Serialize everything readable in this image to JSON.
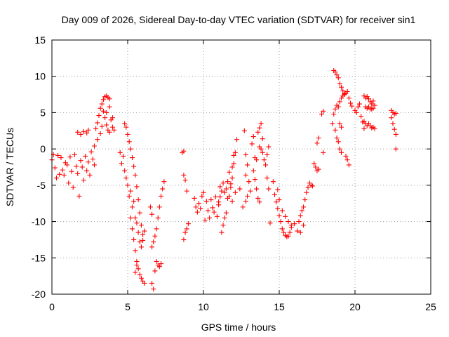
{
  "chart_data": {
    "type": "scatter",
    "title": "Day 009 of 2026, Sidereal Day-to-day VTEC variation (SDTVAR) for receiver sin1",
    "xlabel": "GPS time / hours",
    "ylabel": "SDTVAR / TECUs",
    "xlim": [
      0,
      25
    ],
    "ylim": [
      -20,
      15
    ],
    "xticks": [
      0,
      5,
      10,
      15,
      20,
      25
    ],
    "yticks": [
      -20,
      -15,
      -10,
      -5,
      0,
      5,
      10,
      15
    ],
    "grid": true,
    "marker": "+",
    "series": [
      {
        "name": "SDTVAR",
        "color": "#ff0000",
        "points": [
          [
            0.0,
            -1.5
          ],
          [
            0.1,
            -0.8
          ],
          [
            0.2,
            -2.6
          ],
          [
            0.3,
            -4.0
          ],
          [
            0.4,
            -0.9
          ],
          [
            0.5,
            -3.5
          ],
          [
            0.6,
            -1.2
          ],
          [
            0.7,
            -2.9
          ],
          [
            0.8,
            -3.6
          ],
          [
            0.9,
            -1.9
          ],
          [
            1.0,
            -2.2
          ],
          [
            1.1,
            -4.7
          ],
          [
            1.2,
            -1.1
          ],
          [
            1.3,
            -3.1
          ],
          [
            1.4,
            -5.3
          ],
          [
            1.5,
            -0.8
          ],
          [
            1.6,
            -2.4
          ],
          [
            1.7,
            -3.4
          ],
          [
            1.8,
            -6.5
          ],
          [
            1.9,
            -1.6
          ],
          [
            2.0,
            -2.5
          ],
          [
            2.1,
            -4.3
          ],
          [
            2.2,
            -1.0
          ],
          [
            2.3,
            -3.0
          ],
          [
            2.4,
            -1.8
          ],
          [
            2.5,
            -3.6
          ],
          [
            2.6,
            -0.4
          ],
          [
            2.7,
            -1.4
          ],
          [
            2.8,
            -2.2
          ],
          [
            1.7,
            2.3
          ],
          [
            1.9,
            2.0
          ],
          [
            2.1,
            2.4
          ],
          [
            2.3,
            2.2
          ],
          [
            2.4,
            2.6
          ],
          [
            2.8,
            0.4
          ],
          [
            2.9,
            2.8
          ],
          [
            3.0,
            3.6
          ],
          [
            3.0,
            1.3
          ],
          [
            3.1,
            4.6
          ],
          [
            3.2,
            5.6
          ],
          [
            3.3,
            6.2
          ],
          [
            3.4,
            6.8
          ],
          [
            3.5,
            7.2
          ],
          [
            3.6,
            7.3
          ],
          [
            3.7,
            7.1
          ],
          [
            3.8,
            6.9
          ],
          [
            3.2,
            2.1
          ],
          [
            3.3,
            3.1
          ],
          [
            3.4,
            5.2
          ],
          [
            3.5,
            4.3
          ],
          [
            3.6,
            3.3
          ],
          [
            3.7,
            2.6
          ],
          [
            3.8,
            2.3
          ],
          [
            3.9,
            4.0
          ],
          [
            4.0,
            3.0
          ],
          [
            4.1,
            2.6
          ],
          [
            3.6,
            5.0
          ],
          [
            3.8,
            5.8
          ],
          [
            4.0,
            4.3
          ],
          [
            4.5,
            -0.5
          ],
          [
            4.6,
            -2.0
          ],
          [
            4.7,
            -1.0
          ],
          [
            4.8,
            -3.0
          ],
          [
            4.9,
            -4.0
          ],
          [
            5.0,
            -5.0
          ],
          [
            5.1,
            -6.5
          ],
          [
            5.2,
            -5.8
          ],
          [
            5.3,
            -8.0
          ],
          [
            5.4,
            -7.2
          ],
          [
            5.5,
            -9.5
          ],
          [
            5.6,
            -10.2
          ],
          [
            5.7,
            -11.5
          ],
          [
            5.8,
            -12.8
          ],
          [
            5.9,
            -13.5
          ],
          [
            6.0,
            -12.6
          ],
          [
            6.1,
            -11.3
          ],
          [
            4.8,
            3.5
          ],
          [
            4.9,
            3.0
          ],
          [
            5.0,
            2.0
          ],
          [
            5.1,
            1.0
          ],
          [
            5.2,
            0.0
          ],
          [
            5.3,
            -1.2
          ],
          [
            5.4,
            -2.4
          ],
          [
            5.5,
            -3.6
          ],
          [
            5.6,
            -5.2
          ],
          [
            5.7,
            -7.0
          ],
          [
            5.8,
            -8.8
          ],
          [
            5.9,
            -10.5
          ],
          [
            6.0,
            -11.8
          ],
          [
            5.2,
            -9.5
          ],
          [
            5.3,
            -11.0
          ],
          [
            5.4,
            -12.5
          ],
          [
            5.5,
            -14.0
          ],
          [
            5.6,
            -15.5
          ],
          [
            5.7,
            -16.5
          ],
          [
            5.8,
            -17.3
          ],
          [
            5.9,
            -17.8
          ],
          [
            6.0,
            -18.2
          ],
          [
            6.1,
            -18.5
          ],
          [
            5.5,
            -17.0
          ],
          [
            5.6,
            -16.0
          ],
          [
            6.6,
            -18.5
          ],
          [
            6.7,
            -19.3
          ],
          [
            6.8,
            -16.8
          ],
          [
            6.9,
            -15.5
          ],
          [
            7.0,
            -16.0
          ],
          [
            7.1,
            -16.2
          ],
          [
            7.2,
            -15.8
          ],
          [
            6.8,
            -12.0
          ],
          [
            6.9,
            -11.0
          ],
          [
            7.0,
            -9.5
          ],
          [
            7.1,
            -8.0
          ],
          [
            7.2,
            -6.5
          ],
          [
            7.3,
            -5.5
          ],
          [
            7.4,
            -4.5
          ],
          [
            6.6,
            -13.5
          ],
          [
            6.7,
            -12.8
          ],
          [
            6.5,
            -8.0
          ],
          [
            6.6,
            -9.0
          ],
          [
            8.6,
            -0.5
          ],
          [
            8.7,
            -0.3
          ],
          [
            8.7,
            -3.6
          ],
          [
            8.8,
            -4.3
          ],
          [
            8.9,
            -5.8
          ],
          [
            8.8,
            -11.5
          ],
          [
            8.9,
            -11.0
          ],
          [
            8.7,
            -12.5
          ],
          [
            9.0,
            -10.3
          ],
          [
            9.4,
            -6.8
          ],
          [
            9.5,
            -8.0
          ],
          [
            9.6,
            -8.7
          ],
          [
            9.7,
            -7.5
          ],
          [
            9.8,
            -8.2
          ],
          [
            9.9,
            -6.5
          ],
          [
            10.0,
            -6.0
          ],
          [
            10.1,
            -9.8
          ],
          [
            10.2,
            -7.2
          ],
          [
            10.3,
            -8.5
          ],
          [
            10.4,
            -9.5
          ],
          [
            10.5,
            -7.0
          ],
          [
            10.6,
            -8.1
          ],
          [
            10.7,
            -8.7
          ],
          [
            10.8,
            -6.6
          ],
          [
            10.9,
            -9.3
          ],
          [
            11.0,
            -7.3
          ],
          [
            11.1,
            -5.2
          ],
          [
            11.2,
            -11.5
          ],
          [
            11.3,
            -10.5
          ],
          [
            11.4,
            -9.5
          ],
          [
            11.5,
            -8.8
          ],
          [
            11.6,
            -6.8
          ],
          [
            11.7,
            -6.5
          ],
          [
            11.8,
            -5.3
          ],
          [
            11.9,
            -4.0
          ],
          [
            12.0,
            -2.0
          ],
          [
            12.1,
            -0.5
          ],
          [
            12.2,
            1.3
          ],
          [
            11.4,
            -6.0
          ],
          [
            11.5,
            -5.5
          ],
          [
            11.6,
            -4.5
          ],
          [
            11.7,
            -3.2
          ],
          [
            11.8,
            -4.8
          ],
          [
            11.9,
            -2.5
          ],
          [
            12.0,
            -0.9
          ],
          [
            11.3,
            -4.7
          ],
          [
            11.2,
            -5.8
          ],
          [
            11.1,
            -6.6
          ],
          [
            11.0,
            -7.7
          ],
          [
            12.1,
            -6.0
          ],
          [
            11.9,
            -7.2
          ],
          [
            12.4,
            -5.5
          ],
          [
            12.6,
            -8.0
          ],
          [
            12.8,
            -7.2
          ],
          [
            12.9,
            -6.5
          ],
          [
            13.3,
            -3.0
          ],
          [
            13.4,
            -4.2
          ],
          [
            13.5,
            -5.5
          ],
          [
            13.6,
            -6.8
          ],
          [
            13.7,
            -7.3
          ],
          [
            13.4,
            -1.2
          ],
          [
            13.5,
            -1.5
          ],
          [
            13.6,
            2.3
          ],
          [
            13.7,
            2.9
          ],
          [
            13.8,
            3.5
          ],
          [
            13.9,
            1.4
          ],
          [
            13.7,
            0.3
          ],
          [
            13.8,
            0.0
          ],
          [
            13.9,
            -0.5
          ],
          [
            14.0,
            -1.5
          ],
          [
            14.1,
            -2.2
          ],
          [
            14.2,
            -0.8
          ],
          [
            14.3,
            0.3
          ],
          [
            12.7,
            2.5
          ],
          [
            12.8,
            -0.8
          ],
          [
            12.9,
            -2.2
          ],
          [
            13.0,
            -4.5
          ],
          [
            13.1,
            -5.8
          ],
          [
            13.2,
            0.7
          ],
          [
            13.3,
            1.7
          ],
          [
            12.8,
            -3.6
          ],
          [
            14.2,
            -4.0
          ],
          [
            14.3,
            -5.5
          ],
          [
            14.4,
            -10.2
          ],
          [
            14.6,
            -4.5
          ],
          [
            14.7,
            -6.3
          ],
          [
            14.8,
            -7.3
          ],
          [
            14.9,
            -8.2
          ],
          [
            15.0,
            -9.2
          ],
          [
            15.1,
            -10.0
          ],
          [
            15.2,
            -11.0
          ],
          [
            15.3,
            -11.5
          ],
          [
            15.4,
            -11.9
          ],
          [
            15.5,
            -12.1
          ],
          [
            15.6,
            -12.0
          ],
          [
            15.7,
            -11.5
          ],
          [
            15.8,
            -10.5
          ],
          [
            14.9,
            -5.6
          ],
          [
            15.0,
            -7.0
          ],
          [
            15.2,
            -8.5
          ],
          [
            15.4,
            -9.3
          ],
          [
            15.6,
            -10.0
          ],
          [
            15.8,
            -10.8
          ],
          [
            16.0,
            -10.3
          ],
          [
            16.2,
            -11.3
          ],
          [
            16.3,
            -10.0
          ],
          [
            16.4,
            -9.2
          ],
          [
            16.5,
            -8.5
          ],
          [
            16.6,
            -8.0
          ],
          [
            16.7,
            -7.0
          ],
          [
            16.8,
            -6.0
          ],
          [
            16.9,
            -5.3
          ],
          [
            17.0,
            -4.7
          ],
          [
            17.1,
            -5.0
          ],
          [
            17.2,
            -5.1
          ],
          [
            16.4,
            -11.5
          ],
          [
            16.6,
            -10.5
          ],
          [
            17.3,
            -2.0
          ],
          [
            17.4,
            -2.5
          ],
          [
            17.5,
            -3.0
          ],
          [
            17.6,
            -2.8
          ],
          [
            17.5,
            0.8
          ],
          [
            17.6,
            1.5
          ],
          [
            17.9,
            -0.5
          ],
          [
            17.8,
            4.8
          ],
          [
            17.9,
            5.2
          ],
          [
            18.5,
            3.5
          ],
          [
            18.6,
            4.8
          ],
          [
            18.7,
            5.5
          ],
          [
            18.8,
            6.0
          ],
          [
            18.9,
            5.8
          ],
          [
            18.7,
            2.6
          ],
          [
            18.8,
            1.5
          ],
          [
            18.9,
            1.0
          ],
          [
            19.0,
            0.0
          ],
          [
            19.1,
            -0.5
          ],
          [
            19.0,
            3.5
          ],
          [
            19.1,
            3.0
          ],
          [
            18.6,
            10.8
          ],
          [
            18.7,
            10.6
          ],
          [
            18.8,
            10.2
          ],
          [
            18.9,
            9.8
          ],
          [
            19.0,
            9.0
          ],
          [
            19.1,
            8.5
          ],
          [
            19.2,
            8.0
          ],
          [
            19.3,
            7.6
          ],
          [
            19.4,
            7.7
          ],
          [
            19.5,
            7.9
          ],
          [
            19.6,
            7.0
          ],
          [
            19.7,
            6.3
          ],
          [
            19.8,
            5.9
          ],
          [
            19.0,
            6.5
          ],
          [
            19.1,
            7.0
          ],
          [
            19.2,
            7.3
          ],
          [
            19.3,
            7.5
          ],
          [
            19.4,
            -1.0
          ],
          [
            19.5,
            -1.5
          ],
          [
            19.6,
            -2.2
          ],
          [
            20.0,
            5.3
          ],
          [
            20.1,
            5.0
          ],
          [
            20.2,
            5.8
          ],
          [
            20.3,
            6.2
          ],
          [
            20.4,
            4.5
          ],
          [
            20.5,
            3.7
          ],
          [
            20.6,
            2.8
          ],
          [
            20.6,
            7.3
          ],
          [
            20.7,
            7.0
          ],
          [
            20.8,
            7.2
          ],
          [
            20.9,
            6.9
          ],
          [
            21.0,
            6.5
          ],
          [
            21.1,
            6.2
          ],
          [
            21.2,
            6.6
          ],
          [
            21.3,
            6.0
          ],
          [
            20.7,
            5.8
          ],
          [
            20.8,
            5.6
          ],
          [
            20.9,
            5.8
          ],
          [
            21.0,
            5.5
          ],
          [
            21.1,
            5.5
          ],
          [
            21.2,
            5.6
          ],
          [
            20.6,
            3.8
          ],
          [
            20.7,
            3.5
          ],
          [
            20.8,
            3.2
          ],
          [
            20.9,
            3.5
          ],
          [
            21.0,
            3.2
          ],
          [
            21.1,
            2.9
          ],
          [
            21.2,
            3.0
          ],
          [
            21.3,
            2.8
          ],
          [
            22.4,
            5.3
          ],
          [
            22.5,
            5.0
          ],
          [
            22.6,
            4.8
          ],
          [
            22.7,
            4.9
          ],
          [
            22.4,
            4.3
          ],
          [
            22.5,
            3.5
          ],
          [
            22.6,
            2.7
          ],
          [
            22.7,
            2.0
          ],
          [
            22.7,
            0.0
          ]
        ]
      }
    ]
  }
}
